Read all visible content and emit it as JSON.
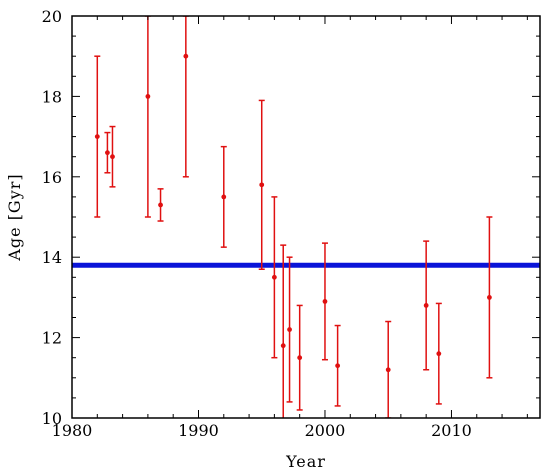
{
  "chart_data": {
    "type": "scatter",
    "title": "",
    "xlabel": "Year",
    "ylabel": "Age [Gyr]",
    "xlim": [
      1980,
      2017
    ],
    "ylim": [
      10,
      20
    ],
    "xticks": [
      1980,
      1990,
      2000,
      2010
    ],
    "yticks": [
      10,
      12,
      14,
      16,
      18,
      20
    ],
    "grid": false,
    "reference_line": {
      "y": 13.8,
      "color": "#0a14d8"
    },
    "series": [
      {
        "color": "#e01010",
        "points": [
          {
            "x": 1982.0,
            "y": 17.0,
            "ylow": 15.0,
            "yhigh": 19.0
          },
          {
            "x": 1982.8,
            "y": 16.6,
            "ylow": 16.1,
            "yhigh": 17.1
          },
          {
            "x": 1983.2,
            "y": 16.5,
            "ylow": 15.75,
            "yhigh": 17.25
          },
          {
            "x": 1986.0,
            "y": 18.0,
            "ylow": 15.0,
            "yhigh": 20.0
          },
          {
            "x": 1987.0,
            "y": 15.3,
            "ylow": 14.9,
            "yhigh": 15.7
          },
          {
            "x": 1989.0,
            "y": 19.0,
            "ylow": 16.0,
            "yhigh": 20.0
          },
          {
            "x": 1992.0,
            "y": 15.5,
            "ylow": 14.25,
            "yhigh": 16.75
          },
          {
            "x": 1995.0,
            "y": 15.8,
            "ylow": 13.7,
            "yhigh": 17.9
          },
          {
            "x": 1996.0,
            "y": 13.5,
            "ylow": 11.5,
            "yhigh": 15.5
          },
          {
            "x": 1996.7,
            "y": 11.8,
            "ylow": 9.3,
            "yhigh": 14.3
          },
          {
            "x": 1997.2,
            "y": 12.2,
            "ylow": 10.4,
            "yhigh": 14.0
          },
          {
            "x": 1998.0,
            "y": 11.5,
            "ylow": 10.2,
            "yhigh": 12.8
          },
          {
            "x": 2000.0,
            "y": 12.9,
            "ylow": 11.45,
            "yhigh": 14.35
          },
          {
            "x": 2001.0,
            "y": 11.3,
            "ylow": 10.3,
            "yhigh": 12.3
          },
          {
            "x": 2005.0,
            "y": 11.2,
            "ylow": 10.0,
            "yhigh": 12.4
          },
          {
            "x": 2008.0,
            "y": 12.8,
            "ylow": 11.2,
            "yhigh": 14.4
          },
          {
            "x": 2009.0,
            "y": 11.6,
            "ylow": 10.35,
            "yhigh": 12.85
          },
          {
            "x": 2013.0,
            "y": 13.0,
            "ylow": 11.0,
            "yhigh": 15.0
          }
        ]
      }
    ]
  }
}
